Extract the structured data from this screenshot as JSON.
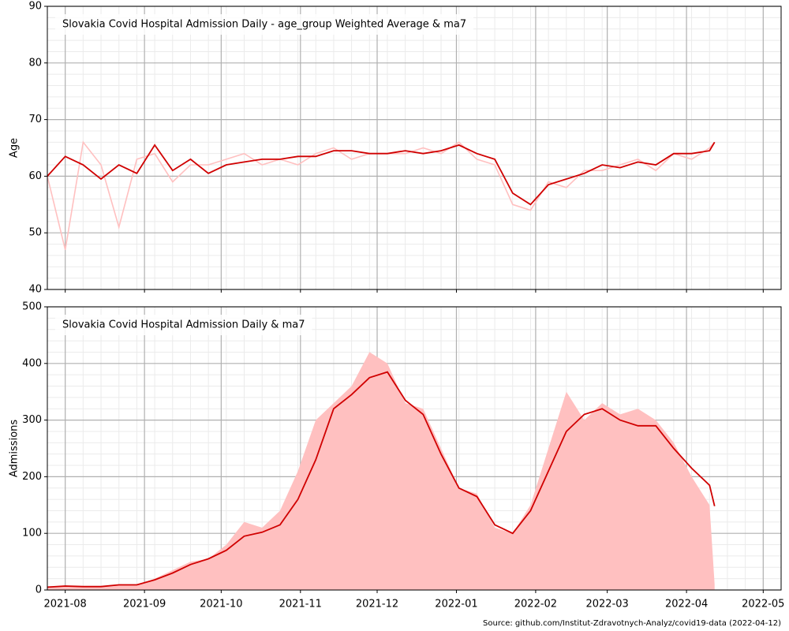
{
  "chart_data": [
    {
      "type": "line",
      "title": "Slovakia Covid Hospital Admission Daily - age_group Weighted Average & ma7",
      "ylabel": "Age",
      "x": [
        "2021-07-25",
        "2021-08-01",
        "2021-08-08",
        "2021-08-15",
        "2021-08-22",
        "2021-08-29",
        "2021-09-05",
        "2021-09-12",
        "2021-09-19",
        "2021-09-26",
        "2021-10-03",
        "2021-10-10",
        "2021-10-17",
        "2021-10-24",
        "2021-10-31",
        "2021-11-07",
        "2021-11-14",
        "2021-11-21",
        "2021-11-28",
        "2021-12-05",
        "2021-12-12",
        "2021-12-19",
        "2021-12-26",
        "2022-01-02",
        "2022-01-09",
        "2022-01-16",
        "2022-01-23",
        "2022-01-30",
        "2022-02-06",
        "2022-02-13",
        "2022-02-20",
        "2022-02-27",
        "2022-03-06",
        "2022-03-13",
        "2022-03-20",
        "2022-03-27",
        "2022-04-03",
        "2022-04-10",
        "2022-04-12"
      ],
      "series": [
        {
          "color": "#ffc0c0",
          "values": [
            60,
            47,
            66,
            62,
            51,
            63,
            64,
            59,
            62,
            62,
            63,
            64,
            62,
            63,
            62,
            64,
            65,
            63,
            64,
            64,
            64,
            65,
            64,
            66,
            63,
            62,
            55,
            54,
            59,
            58,
            61,
            61,
            62,
            63,
            61,
            64,
            63,
            65,
            66
          ]
        },
        {
          "color": "#d00000",
          "values": [
            60,
            63.5,
            62,
            59.5,
            62,
            60.5,
            65.5,
            61,
            63,
            60.5,
            62,
            62.5,
            63,
            63,
            63.5,
            63.5,
            64.5,
            64.5,
            64,
            64,
            64.5,
            64,
            64.5,
            65.5,
            64,
            63,
            57,
            55,
            58.5,
            59.5,
            60.5,
            62,
            61.5,
            62.5,
            62,
            64,
            64,
            64.5,
            66
          ]
        }
      ],
      "xlim": [
        "2021-07-25",
        "2022-05-08"
      ],
      "ylim": [
        40,
        90
      ],
      "yticks": [
        40,
        50,
        60,
        70,
        80,
        90
      ],
      "grid": true
    },
    {
      "type": "line",
      "title": "Slovakia Covid Hospital Admission Daily & ma7",
      "ylabel": "Admissions",
      "x": [
        "2021-07-25",
        "2021-08-01",
        "2021-08-08",
        "2021-08-15",
        "2021-08-22",
        "2021-08-29",
        "2021-09-05",
        "2021-09-12",
        "2021-09-19",
        "2021-09-26",
        "2021-10-03",
        "2021-10-10",
        "2021-10-17",
        "2021-10-24",
        "2021-10-31",
        "2021-11-07",
        "2021-11-14",
        "2021-11-21",
        "2021-11-28",
        "2021-12-05",
        "2021-12-12",
        "2021-12-19",
        "2021-12-26",
        "2022-01-02",
        "2022-01-09",
        "2022-01-16",
        "2022-01-23",
        "2022-01-30",
        "2022-02-06",
        "2022-02-13",
        "2022-02-20",
        "2022-02-27",
        "2022-03-06",
        "2022-03-13",
        "2022-03-20",
        "2022-03-27",
        "2022-04-03",
        "2022-04-10",
        "2022-04-12"
      ],
      "series": [
        {
          "color": "#ffc0c0",
          "fill": true,
          "values": [
            5,
            8,
            5,
            6,
            10,
            8,
            20,
            35,
            50,
            55,
            80,
            120,
            110,
            140,
            210,
            300,
            330,
            360,
            420,
            400,
            330,
            320,
            250,
            180,
            170,
            110,
            100,
            150,
            250,
            350,
            300,
            330,
            310,
            320,
            300,
            260,
            200,
            150,
            10
          ]
        },
        {
          "color": "#d00000",
          "values": [
            5,
            7,
            6,
            6,
            9,
            9,
            18,
            30,
            45,
            55,
            70,
            95,
            102,
            115,
            160,
            230,
            320,
            345,
            375,
            385,
            335,
            310,
            240,
            180,
            165,
            115,
            100,
            140,
            210,
            280,
            310,
            320,
            300,
            290,
            290,
            250,
            215,
            185,
            148
          ]
        }
      ],
      "xlim": [
        "2021-07-25",
        "2022-05-08"
      ],
      "ylim": [
        0,
        500
      ],
      "yticks": [
        0,
        100,
        200,
        300,
        400,
        500
      ],
      "xticks": [
        {
          "value": "2021-08-01",
          "label": "2021-08"
        },
        {
          "value": "2021-09-01",
          "label": "2021-09"
        },
        {
          "value": "2021-10-01",
          "label": "2021-10"
        },
        {
          "value": "2021-11-01",
          "label": "2021-11"
        },
        {
          "value": "2021-12-01",
          "label": "2021-12"
        },
        {
          "value": "2022-01-01",
          "label": "2022-01"
        },
        {
          "value": "2022-02-01",
          "label": "2022-02"
        },
        {
          "value": "2022-03-01",
          "label": "2022-03"
        },
        {
          "value": "2022-04-01",
          "label": "2022-04"
        },
        {
          "value": "2022-05-01",
          "label": "2022-05"
        }
      ],
      "grid": true,
      "source": "Source: github.com/Institut-Zdravotnych-Analyz/covid19-data (2022-04-12)"
    }
  ]
}
